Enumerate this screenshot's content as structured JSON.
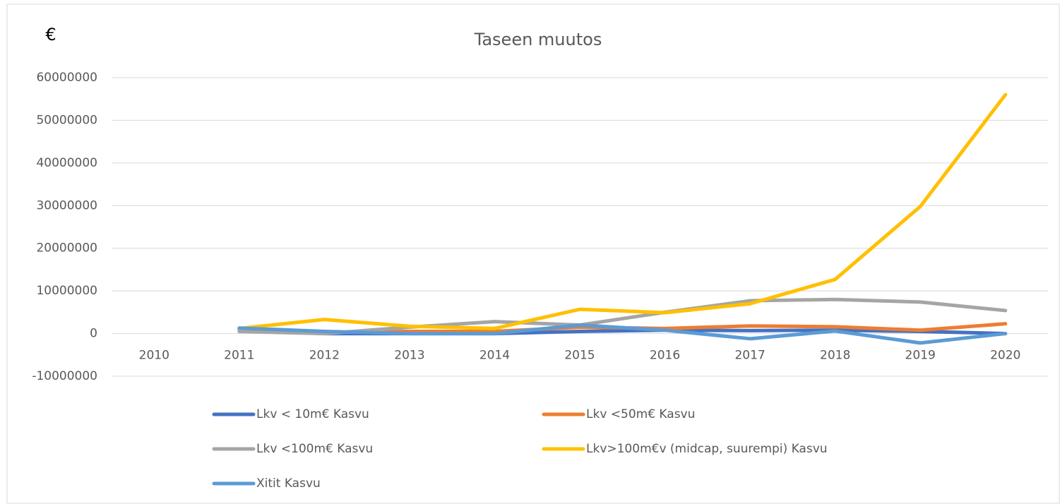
{
  "chart_data": {
    "type": "line",
    "title": "Taseen muutos",
    "ylabel": "€",
    "categories": [
      "2010",
      "2011",
      "2012",
      "2013",
      "2014",
      "2015",
      "2016",
      "2017",
      "2018",
      "2019",
      "2020"
    ],
    "series": [
      {
        "name": "Lkv < 10m€ Kasvu",
        "color": "#4472c4",
        "values": [
          null,
          1000000,
          0,
          0,
          0,
          500000,
          800000,
          700000,
          800000,
          500000,
          0
        ]
      },
      {
        "name": "Lkv <50m€ Kasvu",
        "color": "#ed7d31",
        "values": [
          null,
          800000,
          300000,
          500000,
          500000,
          1500000,
          1200000,
          1800000,
          1600000,
          800000,
          2300000
        ]
      },
      {
        "name": "Lkv <100m€ Kasvu",
        "color": "#a5a5a5",
        "values": [
          null,
          500000,
          0,
          1500000,
          2800000,
          2000000,
          5000000,
          7700000,
          8000000,
          7400000,
          5400000
        ]
      },
      {
        "name": "Lkv>100m€v (midcap, suurempi) Kasvu",
        "color": "#ffc000",
        "values": [
          null,
          1200000,
          3300000,
          1700000,
          1200000,
          5700000,
          4900000,
          7000000,
          12700000,
          29800000,
          56000000
        ]
      },
      {
        "name": "Xitit Kasvu",
        "color": "#5b9bd5",
        "values": [
          null,
          1300000,
          500000,
          0,
          0,
          2000000,
          800000,
          -1200000,
          600000,
          -2200000,
          0
        ]
      }
    ],
    "ylim": [
      -10000000,
      60000000
    ],
    "yticks": [
      -10000000,
      0,
      10000000,
      20000000,
      30000000,
      40000000,
      50000000,
      60000000
    ],
    "grid": true,
    "legend": "bottom"
  }
}
